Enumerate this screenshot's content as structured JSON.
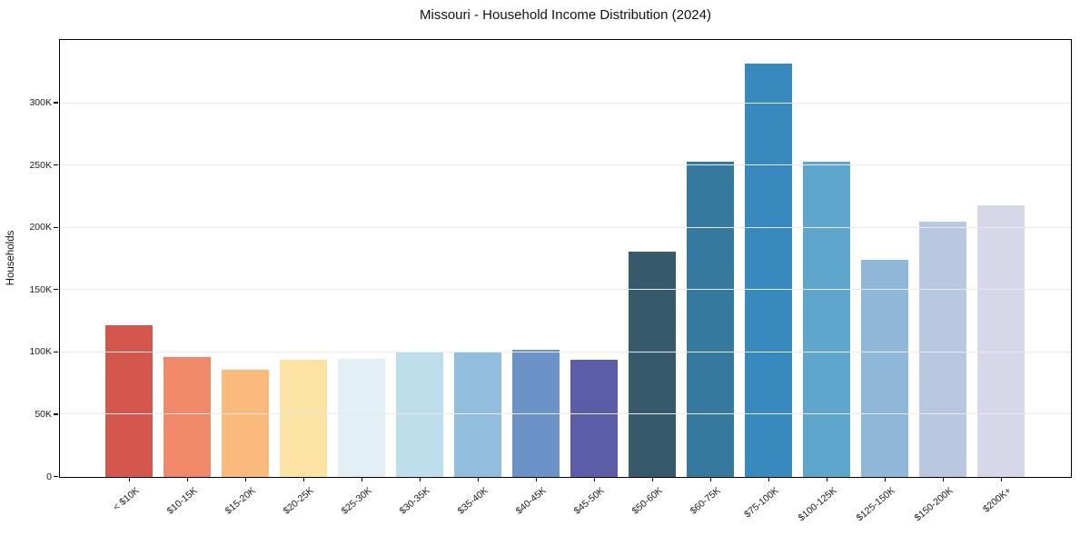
{
  "chart_data": {
    "type": "bar",
    "title": "Missouri - Household Income Distribution (2024)",
    "xlabel": "",
    "ylabel": "Households",
    "categories": [
      "< $10K",
      "$10-15K",
      "$15-20K",
      "$20-25K",
      "$25-30K",
      "$30-35K",
      "$35-40K",
      "$40-45K",
      "$45-50K",
      "$50-60K",
      "$60-75K",
      "$75-100K",
      "$100-125K",
      "$125-150K",
      "$150-200K",
      "$200K+"
    ],
    "values": [
      122000,
      96000,
      86000,
      94000,
      95000,
      100000,
      101000,
      102000,
      94000,
      181000,
      253000,
      332000,
      253000,
      174000,
      205000,
      218000
    ],
    "bar_colors": [
      "#d4574e",
      "#f0886a",
      "#f9ba7b",
      "#fbe3a4",
      "#e2eff5",
      "#bddeea",
      "#92bedd",
      "#6b93c8",
      "#5b5ea7",
      "#36596c",
      "#36799e",
      "#3889be",
      "#5fa6cc",
      "#8fb7d8",
      "#b7c8e0",
      "#d6d8e7"
    ],
    "ylim": [
      0,
      350000
    ],
    "ytick_values": [
      0,
      50000,
      100000,
      150000,
      200000,
      250000,
      300000
    ],
    "ytick_labels": [
      "0",
      "50K",
      "100K",
      "150K",
      "200K",
      "250K",
      "300K"
    ],
    "grid": "horizontal",
    "legend": "none",
    "background_color": "#ffffff",
    "gridline_color": "#e9e9e9",
    "spine_color": "#000000"
  }
}
